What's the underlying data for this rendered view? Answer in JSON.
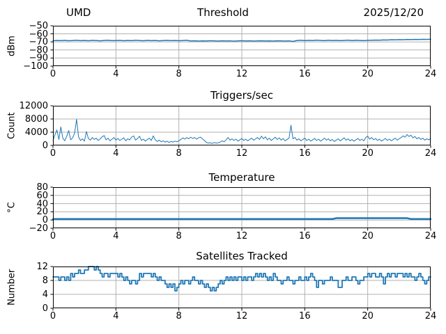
{
  "figure": {
    "station": "UMD",
    "date": "2025/12/20",
    "background": "#ffffff",
    "line_color": "#1f77b4",
    "grid_color": "#b0b0b0",
    "frame_color": "#000000"
  },
  "chart_data": [
    {
      "type": "line",
      "title": "Threshold",
      "title_left": "UMD",
      "title_right": "2025/12/20",
      "ylabel": "dBm",
      "xlim": [
        0,
        24
      ],
      "ylim": [
        -100,
        -50
      ],
      "xticks": [
        0,
        4,
        8,
        12,
        16,
        20,
        24
      ],
      "xticklabels": [
        "0",
        "4",
        "8",
        "12",
        "16",
        "20",
        "24"
      ],
      "yticks": [
        -50,
        -60,
        -70,
        -80,
        -90,
        -100
      ],
      "yticklabels": [
        "−50",
        "−60",
        "−70",
        "−80",
        "−90",
        "−100"
      ],
      "grid": true,
      "color": "#1f77b4",
      "linewidth": 1.5,
      "step": false,
      "x0": 0,
      "dx": 0.25,
      "values": [
        -68.5,
        -68.2,
        -68.4,
        -68.1,
        -68.5,
        -68.3,
        -68.0,
        -68.4,
        -68.2,
        -68.5,
        -68.1,
        -68.3,
        -68.6,
        -68.2,
        -68.0,
        -68.4,
        -68.3,
        -68.1,
        -68.5,
        -68.2,
        -68.4,
        -68.0,
        -68.3,
        -68.5,
        -68.1,
        -68.4,
        -68.2,
        -68.6,
        -68.3,
        -68.1,
        -68.4,
        -68.2,
        -68.5,
        -68.3,
        -68.0,
        -68.9,
        -68.6,
        -69.0,
        -68.7,
        -68.9,
        -68.5,
        -68.8,
        -69.0,
        -68.6,
        -68.9,
        -68.7,
        -69.1,
        -68.8,
        -68.5,
        -68.9,
        -68.6,
        -69.0,
        -68.8,
        -68.6,
        -68.9,
        -68.7,
        -69.0,
        -68.6,
        -68.8,
        -69.0,
        -68.7,
        -69.4,
        -68.3,
        -68.0,
        -68.4,
        -68.1,
        -68.3,
        -67.9,
        -68.2,
        -68.4,
        -68.0,
        -68.3,
        -68.1,
        -68.4,
        -68.2,
        -67.9,
        -68.3,
        -68.0,
        -68.2,
        -68.4,
        -68.1,
        -68.0,
        -67.8,
        -67.9,
        -67.6,
        -67.7,
        -67.4,
        -67.5,
        -67.2,
        -67.3,
        -67.0,
        -67.1,
        -66.9,
        -67.0,
        -66.8,
        -66.9,
        -66.7
      ]
    },
    {
      "type": "line",
      "title": "Triggers/sec",
      "ylabel": "Count",
      "xlim": [
        0,
        24
      ],
      "ylim": [
        0,
        12000
      ],
      "xticks": [
        0,
        4,
        8,
        12,
        16,
        20,
        24
      ],
      "xticklabels": [
        "0",
        "4",
        "8",
        "12",
        "16",
        "20",
        "24"
      ],
      "yticks": [
        12000,
        8000,
        4000,
        0
      ],
      "yticklabels": [
        "12000",
        "8000",
        "4000",
        "0"
      ],
      "grid": true,
      "color": "#1f77b4",
      "linewidth": 1,
      "step": false,
      "x0": 0,
      "dx": 0.125,
      "values": [
        1500,
        3200,
        4700,
        1800,
        5600,
        2200,
        1400,
        2800,
        4500,
        1700,
        2300,
        3700,
        7900,
        2600,
        1500,
        2000,
        1300,
        4200,
        2100,
        1600,
        2400,
        1800,
        2200,
        1500,
        2000,
        2600,
        3000,
        1700,
        2200,
        1400,
        1900,
        2400,
        1600,
        2100,
        1500,
        1900,
        2300,
        1400,
        2000,
        1700,
        2500,
        2900,
        1600,
        2100,
        2800,
        1500,
        1900,
        1300,
        1800,
        2200,
        1500,
        2900,
        1700,
        1200,
        1600,
        1100,
        1400,
        1000,
        1300,
        900,
        1200,
        1000,
        1300,
        1100,
        1400,
        1800,
        2300,
        1900,
        2400,
        2000,
        2500,
        2100,
        2400,
        1900,
        2300,
        2500,
        2000,
        1500,
        900,
        700,
        800,
        600,
        900,
        700,
        800,
        1000,
        1400,
        1100,
        1700,
        2400,
        1600,
        2000,
        1500,
        1900,
        1300,
        1700,
        2100,
        1500,
        1900,
        1400,
        1800,
        2200,
        1600,
        2000,
        2400,
        1800,
        2800,
        2000,
        2600,
        1700,
        2200,
        1500,
        2000,
        2500,
        1800,
        2300,
        1600,
        2100,
        1400,
        1800,
        2200,
        6100,
        2000,
        2400,
        1600,
        2000,
        1400,
        1800,
        2200,
        1500,
        1900,
        1300,
        1700,
        2100,
        1500,
        1900,
        1300,
        1700,
        2200,
        1600,
        2000,
        1400,
        1800,
        1200,
        1600,
        2000,
        1400,
        1800,
        2300,
        1600,
        2000,
        1400,
        1800,
        1300,
        1700,
        2100,
        1500,
        1900,
        1400,
        2400,
        2800,
        1900,
        2400,
        1700,
        2100,
        1500,
        1900,
        1300,
        1700,
        2100,
        1500,
        1900,
        1400,
        1800,
        2200,
        1600,
        2000,
        2400,
        2900,
        2500,
        3300,
        2700,
        3100,
        2300,
        2700,
        2000,
        2400,
        1800,
        2200,
        1600,
        2000,
        1700,
        2100
      ]
    },
    {
      "type": "line",
      "title": "Temperature",
      "ylabel": "°C",
      "xlim": [
        0,
        24
      ],
      "ylim": [
        -20,
        80
      ],
      "xticks": [
        0,
        4,
        8,
        12,
        16,
        20,
        24
      ],
      "xticklabels": [
        "0",
        "4",
        "8",
        "12",
        "16",
        "20",
        "24"
      ],
      "yticks": [
        80,
        60,
        40,
        20,
        0,
        -20
      ],
      "yticklabels": [
        "80",
        "60",
        "40",
        "20",
        "0",
        "−20"
      ],
      "grid": true,
      "color": "#1f77b4",
      "linewidth": 2.5,
      "step": false,
      "x0": 0,
      "dx": 0.25,
      "values": [
        2.5,
        2.5,
        2.5,
        2.5,
        2.5,
        2.5,
        2.5,
        2.5,
        2.5,
        2.5,
        2.5,
        2.5,
        2.5,
        2.5,
        2.5,
        2.5,
        2.5,
        2.5,
        2.5,
        2.5,
        2.5,
        2.5,
        2.5,
        2.5,
        2.5,
        2.5,
        2.5,
        2.5,
        2.5,
        2.5,
        2.5,
        2.5,
        2.5,
        2.5,
        2.5,
        2.5,
        2.5,
        2.5,
        2.5,
        2.5,
        2.5,
        2.5,
        2.5,
        2.5,
        2.5,
        2.5,
        2.5,
        2.5,
        2.5,
        2.5,
        2.5,
        2.5,
        2.5,
        2.5,
        2.5,
        2.5,
        2.5,
        2.5,
        2.5,
        2.5,
        2.5,
        2.5,
        2.5,
        2.5,
        2.5,
        2.5,
        2.5,
        2.5,
        2.5,
        2.5,
        2.5,
        2.5,
        4.5,
        4.5,
        4.5,
        4.5,
        4.5,
        4.5,
        4.5,
        4.5,
        4.5,
        4.5,
        4.5,
        4.5,
        4.5,
        4.5,
        4.5,
        4.5,
        4.5,
        4.5,
        4.5,
        2.5,
        2.5,
        2.5,
        2.5,
        2.5,
        2.5
      ]
    },
    {
      "type": "line",
      "title": "Satellites Tracked",
      "ylabel": "Number",
      "xlim": [
        0,
        24
      ],
      "ylim": [
        0,
        12
      ],
      "xticks": [
        0,
        4,
        8,
        12,
        16,
        20,
        24
      ],
      "xticklabels": [
        "0",
        "4",
        "8",
        "12",
        "16",
        "20",
        "24"
      ],
      "yticks": [
        12,
        8,
        4,
        0
      ],
      "yticklabels": [
        "12",
        "8",
        "4",
        "0"
      ],
      "grid": true,
      "color": "#1f77b4",
      "linewidth": 1.8,
      "step": true,
      "x0": 0,
      "dx": 0.125,
      "values": [
        9,
        9,
        9,
        8,
        9,
        9,
        8,
        9,
        8,
        10,
        9,
        10,
        10,
        11,
        10,
        10,
        11,
        11,
        12,
        12,
        12,
        11,
        12,
        11,
        10,
        9,
        10,
        10,
        9,
        10,
        10,
        10,
        10,
        9,
        10,
        9,
        8,
        9,
        8,
        7,
        8,
        8,
        7,
        8,
        10,
        9,
        10,
        10,
        10,
        10,
        9,
        10,
        9,
        8,
        9,
        8,
        8,
        7,
        6,
        7,
        6,
        7,
        5,
        6,
        7,
        8,
        7,
        8,
        8,
        7,
        8,
        9,
        8,
        8,
        7,
        8,
        7,
        6,
        7,
        6,
        5,
        6,
        5,
        6,
        7,
        8,
        7,
        8,
        9,
        8,
        9,
        8,
        9,
        8,
        9,
        9,
        8,
        9,
        8,
        9,
        9,
        8,
        9,
        10,
        9,
        10,
        9,
        10,
        9,
        8,
        9,
        8,
        10,
        9,
        8,
        8,
        7,
        8,
        8,
        9,
        8,
        8,
        7,
        8,
        8,
        9,
        8,
        8,
        9,
        8,
        9,
        10,
        9,
        8,
        6,
        8,
        8,
        7,
        8,
        8,
        8,
        9,
        8,
        8,
        8,
        6,
        6,
        8,
        8,
        9,
        8,
        8,
        9,
        9,
        8,
        7,
        8,
        8,
        9,
        9,
        10,
        9,
        10,
        10,
        9,
        9,
        10,
        9,
        7,
        9,
        10,
        9,
        10,
        10,
        9,
        10,
        10,
        10,
        9,
        10,
        9,
        10,
        9,
        9,
        8,
        9,
        10,
        9,
        8,
        7,
        8,
        9,
        9
      ]
    }
  ]
}
